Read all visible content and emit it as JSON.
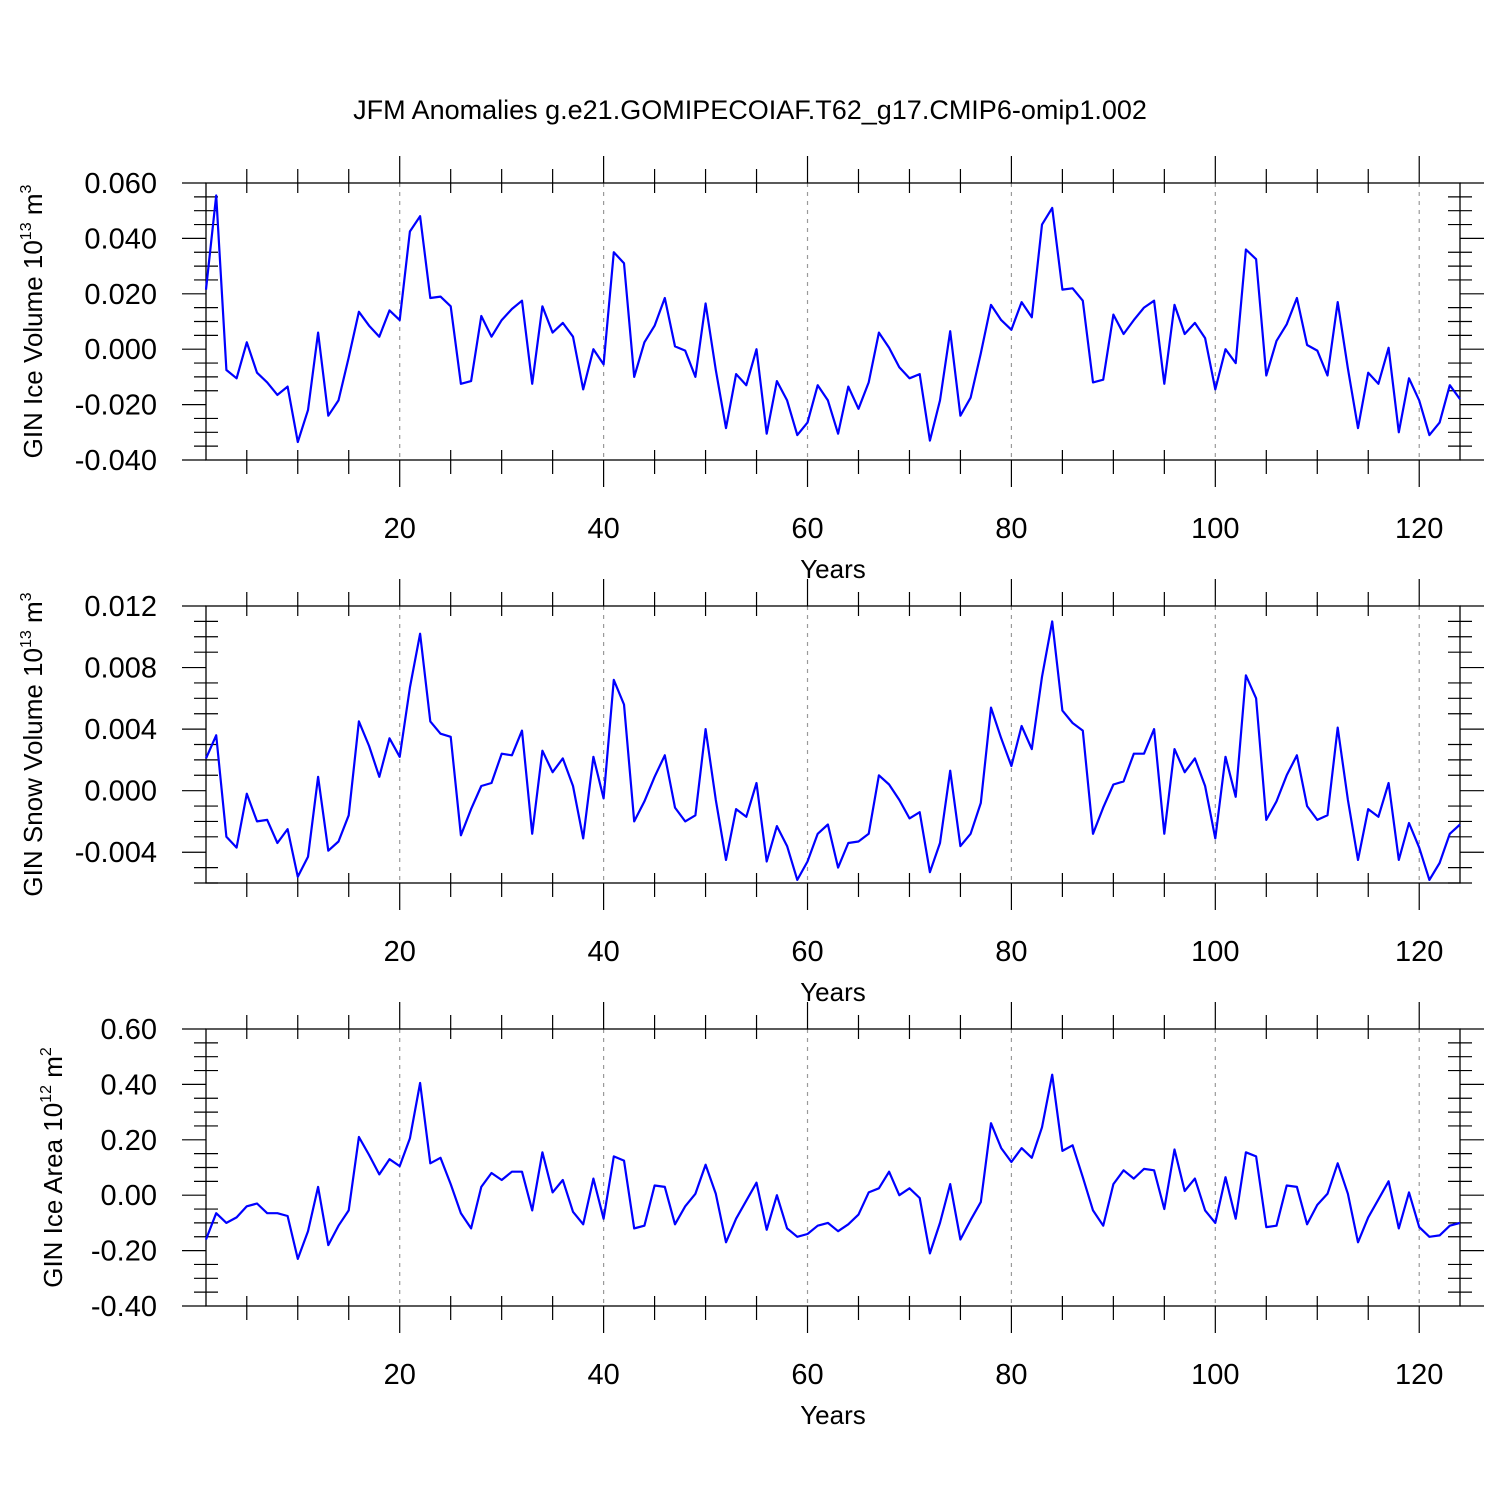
{
  "figure_title": "JFM Anomalies g.e21.GOMIPECOIAF.T62_g17.CMIP6-omip1.002",
  "colors": {
    "series": "#0000ff",
    "grid": "#9a9a9a",
    "axes": "#000000"
  },
  "chart_data": [
    {
      "type": "line",
      "ylabel": {
        "text": "GIN Ice Volume 10",
        "exp": "13",
        "unit": " m",
        "unit_exp": "3"
      },
      "xlabel": "Years",
      "xlim": [
        1,
        124
      ],
      "ylim": [
        -0.04,
        0.06
      ],
      "yticks": [
        -0.04,
        -0.02,
        0.0,
        0.02,
        0.04,
        0.06
      ],
      "ytick_labels": [
        "-0.040",
        "-0.020",
        "0.000",
        "0.020",
        "0.040",
        "0.060"
      ],
      "xticks": [
        20,
        40,
        60,
        80,
        100,
        120
      ],
      "xtick_labels": [
        "20",
        "40",
        "60",
        "80",
        "100",
        "120"
      ],
      "grid": "vertical dashed at x ticks",
      "series": [
        {
          "values": [
            0.0215,
            0.0555,
            -0.0075,
            -0.0105,
            0.0025,
            -0.0085,
            -0.012,
            -0.0165,
            -0.0135,
            -0.0335,
            -0.022,
            0.006,
            -0.024,
            -0.0185,
            -0.003,
            0.0135,
            0.0085,
            0.0045,
            0.014,
            0.0105,
            0.0425,
            0.048,
            0.0185,
            0.019,
            0.0155,
            -0.0125,
            -0.0115,
            0.012,
            0.0045,
            0.0105,
            0.0145,
            0.0175,
            -0.0125,
            0.0155,
            0.006,
            0.0095,
            0.0045,
            -0.0145,
            0.0,
            -0.0055,
            0.035,
            0.031,
            -0.01,
            0.0025,
            0.0085,
            0.0185,
            0.001,
            -0.0005,
            -0.01,
            0.0165,
            -0.0075,
            -0.0285,
            -0.009,
            -0.013,
            0.0,
            -0.0305,
            -0.0115,
            -0.0185,
            -0.031,
            -0.0265,
            -0.013,
            -0.0185,
            -0.0305,
            -0.0135,
            -0.0215,
            -0.012,
            0.006,
            0.0005,
            -0.0065,
            -0.0105,
            -0.009,
            -0.033,
            -0.0185,
            0.0065,
            -0.024,
            -0.0175,
            -0.0015,
            0.016,
            0.0105,
            0.007,
            0.017,
            0.0115,
            0.045,
            0.051,
            0.0215,
            0.022,
            0.0175,
            -0.012,
            -0.011,
            0.0125,
            0.0055,
            0.0105,
            0.015,
            0.0175,
            -0.0125,
            0.016,
            0.0055,
            0.0095,
            0.004,
            -0.0145,
            0.0,
            -0.005,
            0.036,
            0.0325,
            -0.0095,
            0.003,
            0.009,
            0.0185,
            0.0015,
            -0.0005,
            -0.0095,
            0.017,
            -0.007,
            -0.0285,
            -0.0085,
            -0.0125,
            0.0005,
            -0.03,
            -0.0105,
            -0.0185,
            -0.031,
            -0.0265,
            -0.013,
            -0.018
          ]
        }
      ]
    },
    {
      "type": "line",
      "ylabel": {
        "text": "GIN Snow Volume 10",
        "exp": "13",
        "unit": " m",
        "unit_exp": "3"
      },
      "xlabel": "Years",
      "xlim": [
        1,
        124
      ],
      "ylim": [
        -0.006,
        0.012
      ],
      "yticks": [
        -0.004,
        0.0,
        0.004,
        0.008,
        0.012
      ],
      "ytick_labels": [
        "-0.004",
        "0.000",
        "0.004",
        "0.008",
        "0.012"
      ],
      "xticks": [
        20,
        40,
        60,
        80,
        100,
        120
      ],
      "xtick_labels": [
        "20",
        "40",
        "60",
        "80",
        "100",
        "120"
      ],
      "grid": "vertical dashed at x ticks",
      "series": [
        {
          "values": [
            0.0021,
            0.0036,
            -0.003,
            -0.0037,
            -0.0002,
            -0.002,
            -0.0019,
            -0.0034,
            -0.0025,
            -0.0056,
            -0.0043,
            0.0009,
            -0.0039,
            -0.0033,
            -0.0016,
            0.0045,
            0.0029,
            0.0009,
            0.0034,
            0.0022,
            0.0067,
            0.0102,
            0.0045,
            0.0037,
            0.0035,
            -0.0029,
            -0.0012,
            0.0003,
            0.0005,
            0.0024,
            0.0023,
            0.0039,
            -0.0028,
            0.0026,
            0.0012,
            0.0021,
            0.0003,
            -0.0031,
            0.0022,
            -0.0005,
            0.0072,
            0.0056,
            -0.002,
            -0.0007,
            0.0009,
            0.0023,
            -0.0011,
            -0.002,
            -0.0016,
            0.004,
            -0.0006,
            -0.0045,
            -0.0012,
            -0.0017,
            0.0005,
            -0.0046,
            -0.0023,
            -0.0036,
            -0.0058,
            -0.0046,
            -0.0028,
            -0.0022,
            -0.005,
            -0.0034,
            -0.0033,
            -0.0028,
            0.001,
            0.0004,
            -0.0006,
            -0.0018,
            -0.0014,
            -0.0053,
            -0.0034,
            0.0013,
            -0.0036,
            -0.0028,
            -0.0008,
            0.0054,
            0.0034,
            0.0016,
            0.0042,
            0.0027,
            0.0074,
            0.011,
            0.0052,
            0.0044,
            0.0039,
            -0.0028,
            -0.0011,
            0.0004,
            0.0006,
            0.0024,
            0.0024,
            0.004,
            -0.0028,
            0.0027,
            0.0012,
            0.0021,
            0.0003,
            -0.0031,
            0.0022,
            -0.0004,
            0.0075,
            0.006,
            -0.0019,
            -0.0007,
            0.001,
            0.0023,
            -0.001,
            -0.0019,
            -0.0016,
            0.0041,
            -0.0006,
            -0.0045,
            -0.0012,
            -0.0017,
            0.0005,
            -0.0045,
            -0.0021,
            -0.0037,
            -0.0058,
            -0.0047,
            -0.0028,
            -0.0022
          ]
        }
      ]
    },
    {
      "type": "line",
      "ylabel": {
        "text": "GIN Ice Area 10",
        "exp": "12",
        "unit": " m",
        "unit_exp": "2"
      },
      "xlabel": "Years",
      "xlim": [
        1,
        124
      ],
      "ylim": [
        -0.4,
        0.6
      ],
      "yticks": [
        -0.4,
        -0.2,
        0.0,
        0.2,
        0.4,
        0.6
      ],
      "ytick_labels": [
        "-0.40",
        "-0.20",
        "0.00",
        "0.20",
        "0.40",
        "0.60"
      ],
      "xticks": [
        20,
        40,
        60,
        80,
        100,
        120
      ],
      "xtick_labels": [
        "20",
        "40",
        "60",
        "80",
        "100",
        "120"
      ],
      "grid": "vertical dashed at x ticks",
      "series": [
        {
          "values": [
            -0.16,
            -0.065,
            -0.1,
            -0.08,
            -0.04,
            -0.03,
            -0.065,
            -0.065,
            -0.075,
            -0.23,
            -0.13,
            0.03,
            -0.18,
            -0.11,
            -0.055,
            0.21,
            0.145,
            0.075,
            0.13,
            0.105,
            0.205,
            0.405,
            0.115,
            0.135,
            0.04,
            -0.065,
            -0.12,
            0.03,
            0.08,
            0.055,
            0.085,
            0.085,
            -0.055,
            0.155,
            0.01,
            0.055,
            -0.06,
            -0.105,
            0.06,
            -0.085,
            0.14,
            0.125,
            -0.12,
            -0.11,
            0.035,
            0.03,
            -0.105,
            -0.04,
            0.005,
            0.11,
            0.005,
            -0.17,
            -0.085,
            -0.02,
            0.045,
            -0.125,
            0.0,
            -0.12,
            -0.15,
            -0.14,
            -0.11,
            -0.1,
            -0.13,
            -0.105,
            -0.07,
            0.01,
            0.025,
            0.085,
            0.0,
            0.025,
            -0.01,
            -0.21,
            -0.1,
            0.04,
            -0.16,
            -0.09,
            -0.025,
            0.26,
            0.17,
            0.12,
            0.17,
            0.135,
            0.245,
            0.435,
            0.16,
            0.18,
            0.065,
            -0.055,
            -0.11,
            0.04,
            0.09,
            0.06,
            0.095,
            0.09,
            -0.05,
            0.165,
            0.015,
            0.06,
            -0.055,
            -0.1,
            0.065,
            -0.085,
            0.155,
            0.14,
            -0.115,
            -0.11,
            0.035,
            0.03,
            -0.105,
            -0.035,
            0.005,
            0.115,
            0.005,
            -0.17,
            -0.08,
            -0.015,
            0.05,
            -0.12,
            0.01,
            -0.115,
            -0.15,
            -0.145,
            -0.11,
            -0.1
          ]
        }
      ]
    }
  ]
}
